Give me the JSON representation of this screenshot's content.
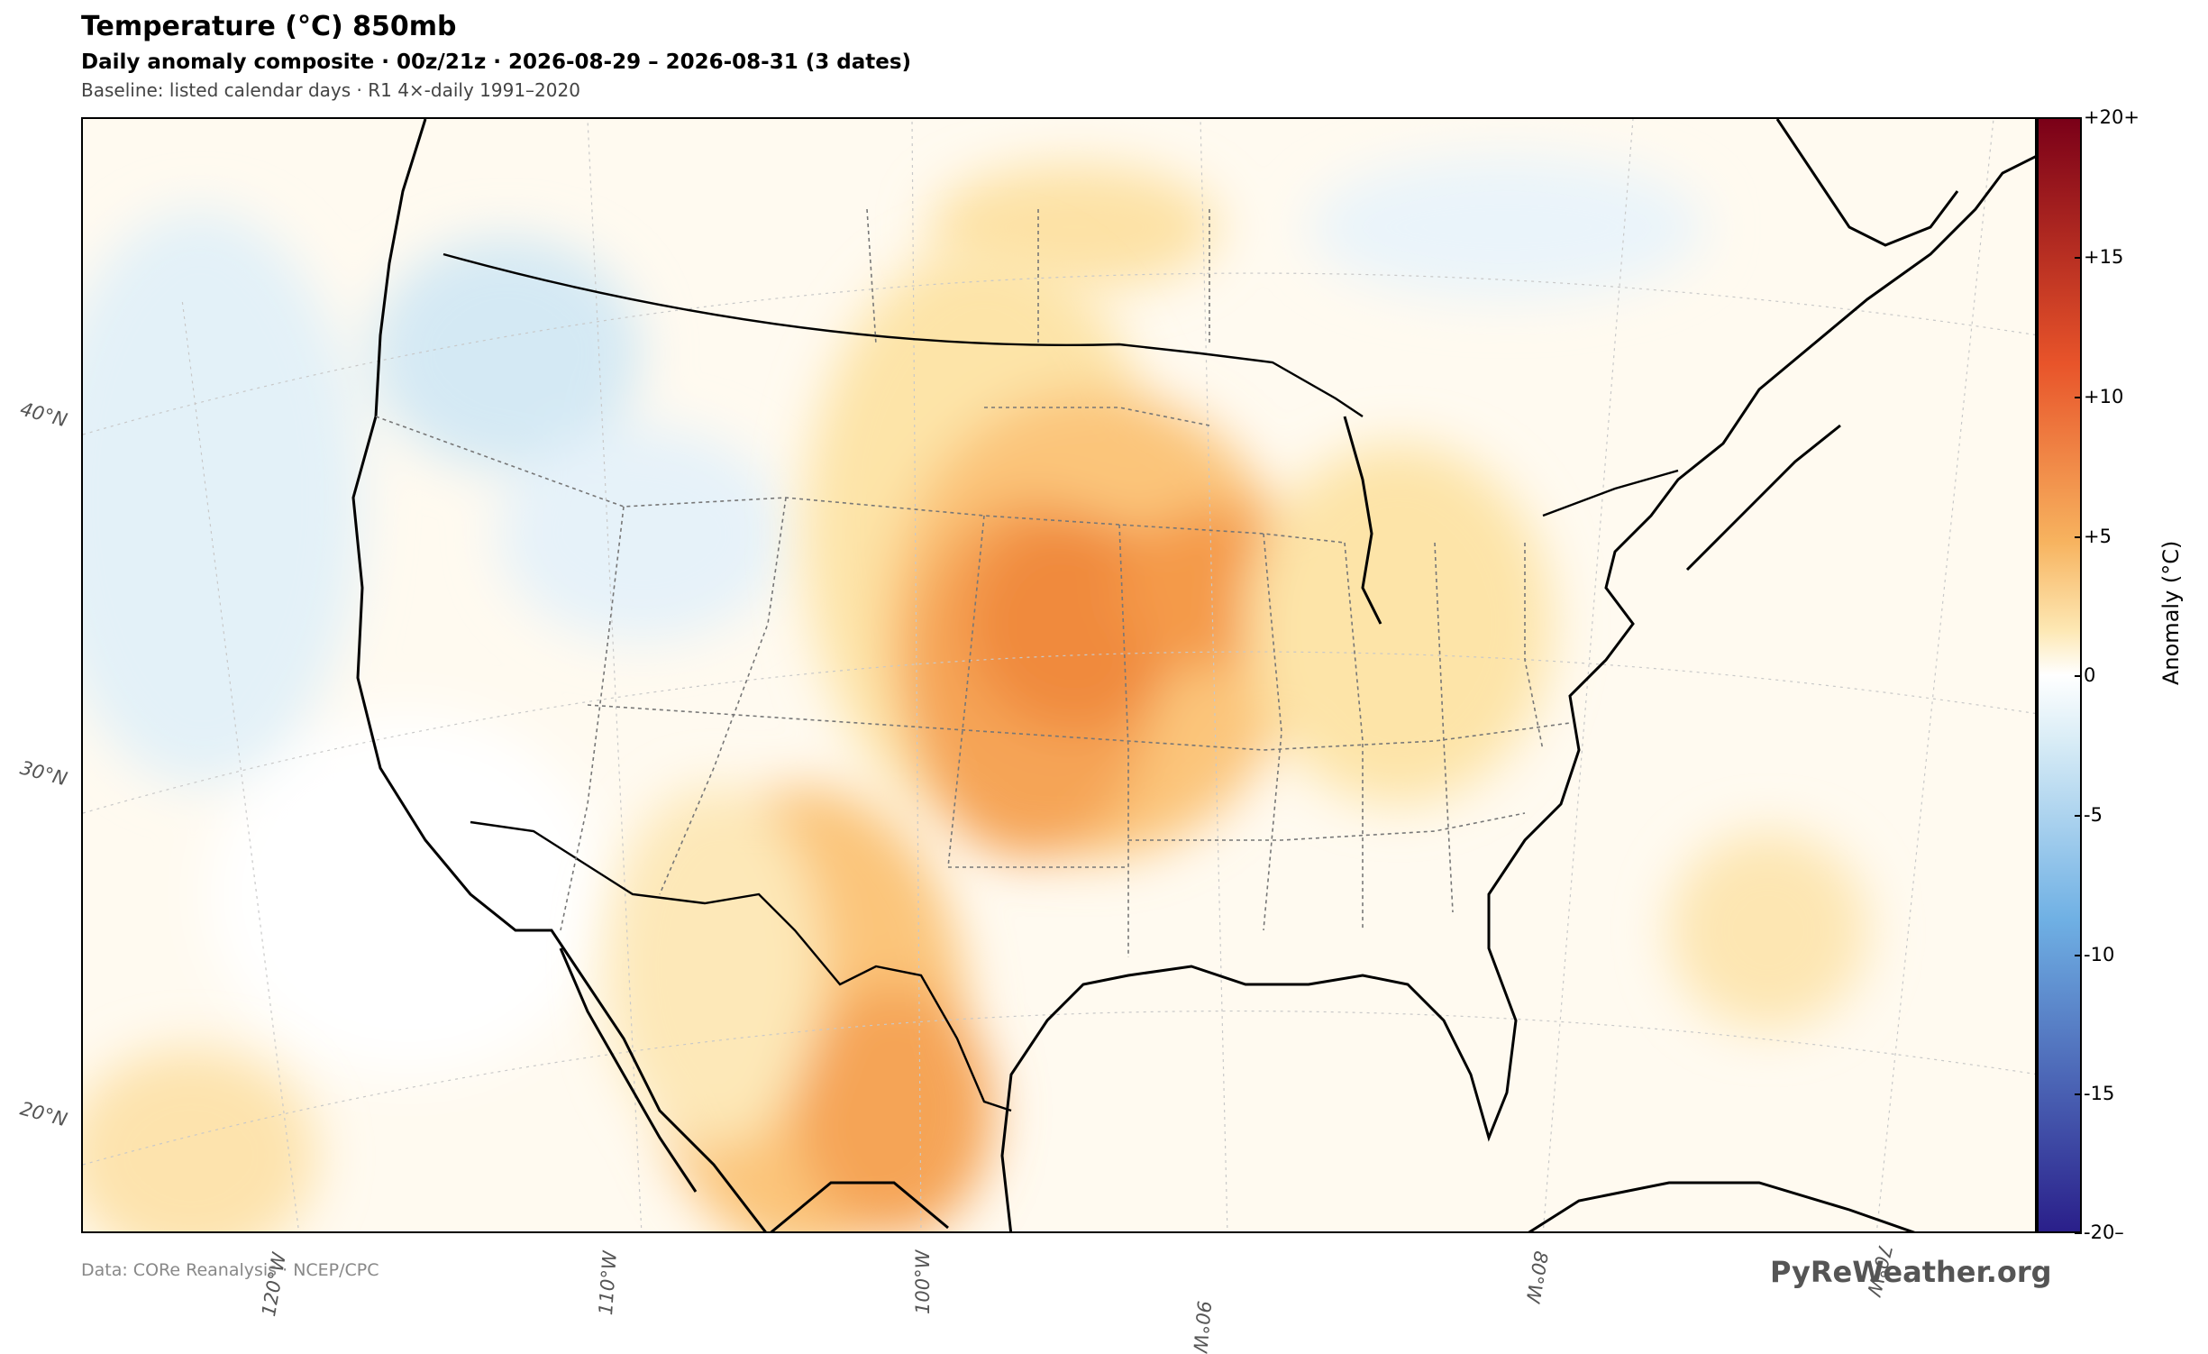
{
  "header": {
    "title": "Temperature (°C)  850mb",
    "subtitle": "Daily anomaly composite · 00z/21z · 2026-08-29 – 2026-08-31  (3 dates)",
    "baseline": "Baseline: listed calendar days · R1 4×-daily 1991–2020"
  },
  "map": {
    "lat_labels": [
      "40°N",
      "30°N",
      "20°N"
    ],
    "lon_labels": [
      "120°W",
      "110°W",
      "100°W",
      "90°W",
      "80°W",
      "70°W"
    ],
    "legend_label": "Anomaly  (°C)",
    "colorbar_ticks": [
      "+20+",
      "+15",
      "+10",
      "+5",
      "0",
      "-5",
      "-10",
      "-15",
      "-20–"
    ],
    "colors": {
      "warm_max": "#7a0018",
      "warm_strong": "#e8542a",
      "warm_mid": "#f7b35f",
      "warm_light": "#fde8b4",
      "neutral": "#ffffff",
      "cool_light": "#d8ecf6",
      "cool_mid": "#6fb0e4",
      "cool_max": "#2a1f8a"
    },
    "anomaly_regions": [
      {
        "name": "Central Plains warm core",
        "value": 9
      },
      {
        "name": "Upper Midwest warm band",
        "value": 5
      },
      {
        "name": "Northern Mexico warm area",
        "value": 7
      },
      {
        "name": "Pacific Northwest cool area",
        "value": -2
      }
    ]
  },
  "footer": {
    "source": "Data: CORe Reanalysis  ·  NCEP/CPC",
    "brand": "PyReWeather.org"
  }
}
